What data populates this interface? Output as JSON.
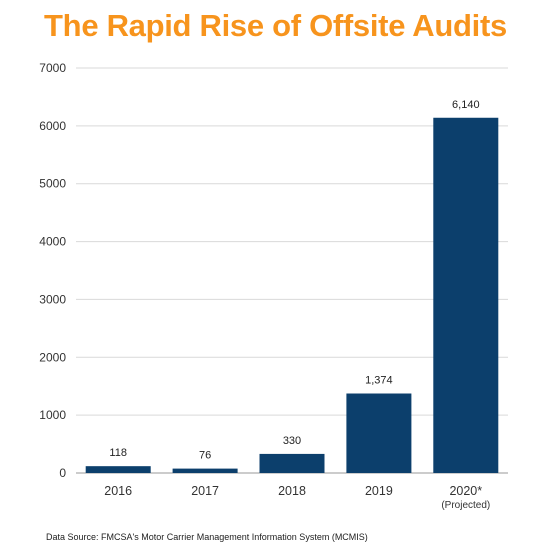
{
  "title": "The Rapid Rise of Offsite Audits",
  "source": "Data Source: FMCSA's Motor Carrier Management Information System (MCMIS)",
  "colors": {
    "title": "#f7941d",
    "bar": "#0c3f6c",
    "grid": "#d9d9d9"
  },
  "chart_data": {
    "type": "bar",
    "categories": [
      "2016",
      "2017",
      "2018",
      "2019",
      "2020*"
    ],
    "category_sublabels": [
      "",
      "",
      "",
      "",
      "(Projected)"
    ],
    "values": [
      118,
      76,
      330,
      1374,
      6140
    ],
    "data_labels": [
      "118",
      "76",
      "330",
      "1,374",
      "6,140"
    ],
    "ylim": [
      0,
      7000
    ],
    "yticks": [
      0,
      1000,
      2000,
      3000,
      4000,
      5000,
      6000,
      7000
    ],
    "grid": true,
    "xlabel": "",
    "ylabel": ""
  }
}
